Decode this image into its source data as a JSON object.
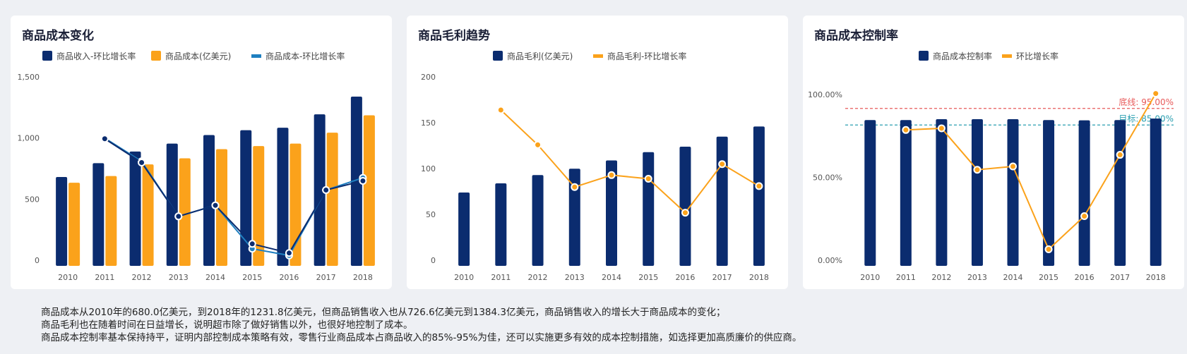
{
  "colors": {
    "navy": "#0b2c6f",
    "orange": "#fba21b",
    "blue": "#1f7fc0",
    "red": "#e85a5a",
    "teal": "#2a9fb0"
  },
  "chart_data": [
    {
      "type": "bar",
      "title": "商品成本变化",
      "categories": [
        "2010",
        "2011",
        "2012",
        "2013",
        "2014",
        "2015",
        "2016",
        "2017",
        "2018"
      ],
      "ylim": [
        0,
        1500
      ],
      "yticks": [
        0,
        500,
        1000,
        1500
      ],
      "ytick_labels": [
        "0",
        "500",
        "1,000",
        "1,500"
      ],
      "series": [
        {
          "name": "商品收入-环比增长率",
          "type": "bar",
          "color": "#0b2c6f",
          "values": [
            726.6,
            840,
            935,
            1000,
            1070,
            1110,
            1130,
            1240,
            1384.3
          ]
        },
        {
          "name": "商品成本(亿美元)",
          "type": "bar",
          "color": "#fba21b",
          "values": [
            680.0,
            735,
            830,
            880,
            955,
            980,
            1000,
            1090,
            1231.8
          ]
        },
        {
          "name": "商品成本-环比增长率",
          "type": "line",
          "color": "#1f7fc0",
          "values": [
            null,
            1045,
            855,
            405,
            495,
            140,
            85,
            620,
            720
          ]
        },
        {
          "name": "",
          "type": "line",
          "color": "#0b2c6f",
          "values": [
            null,
            1040,
            845,
            405,
            495,
            180,
            105,
            620,
            695
          ]
        }
      ],
      "legend": "top-center",
      "grid": false
    },
    {
      "type": "bar",
      "title": "商品毛利趋势",
      "categories": [
        "2010",
        "2011",
        "2012",
        "2013",
        "2014",
        "2015",
        "2016",
        "2017",
        "2018"
      ],
      "ylim": [
        0,
        200
      ],
      "yticks": [
        0,
        50,
        100,
        150,
        200
      ],
      "ytick_labels": [
        "0",
        "50",
        "100",
        "150",
        "200"
      ],
      "series": [
        {
          "name": "商品毛利(亿美元)",
          "type": "bar",
          "color": "#0b2c6f",
          "values": [
            80,
            90,
            99,
            106,
            115,
            124,
            130,
            141,
            152
          ]
        },
        {
          "name": "商品毛利-环比增长率",
          "type": "line",
          "color": "#fba21b",
          "values": [
            null,
            170,
            132,
            86,
            99,
            95,
            58,
            111,
            87
          ]
        }
      ],
      "legend": "top-center",
      "grid": false
    },
    {
      "type": "bar",
      "title": "商品成本控制率",
      "categories": [
        "2010",
        "2011",
        "2012",
        "2013",
        "2014",
        "2015",
        "2016",
        "2017",
        "2018"
      ],
      "ylim": [
        0,
        100
      ],
      "yticks": [
        0,
        50,
        100
      ],
      "ytick_labels": [
        "0.00%",
        "50.00%",
        "100.00%"
      ],
      "series": [
        {
          "name": "商品成本控制率",
          "type": "bar",
          "color": "#0b2c6f",
          "values": [
            88.0,
            88.0,
            88.5,
            88.5,
            88.5,
            88.0,
            87.8,
            88.0,
            88.9
          ]
        },
        {
          "name": "环比增长率",
          "type": "line",
          "color": "#fba21b",
          "values": [
            null,
            82,
            83,
            58,
            60,
            10,
            30,
            67,
            104
          ]
        }
      ],
      "reference_lines": [
        {
          "label": "底线: 95.00%",
          "value": 95,
          "color": "#e85a5a"
        },
        {
          "label": "目标: 85.00%",
          "value": 85,
          "color": "#2a9fb0"
        }
      ],
      "legend": "top-center",
      "grid": false
    }
  ],
  "summary": {
    "line1": "商品成本从2010年的680.0亿美元，到2018年的1231.8亿美元，但商品销售收入也从726.6亿美元到1384.3亿美元，商品销售收入的增长大于商品成本的变化；",
    "line2": "商品毛利也在随着时间在日益增长，说明超市除了做好销售以外，也很好地控制了成本。",
    "line3": "商品成本控制率基本保持持平，证明内部控制成本策略有效，零售行业商品成本占商品收入的85%-95%为佳，还可以实施更多有效的成本控制措施，如选择更加高质廉价的供应商。"
  }
}
